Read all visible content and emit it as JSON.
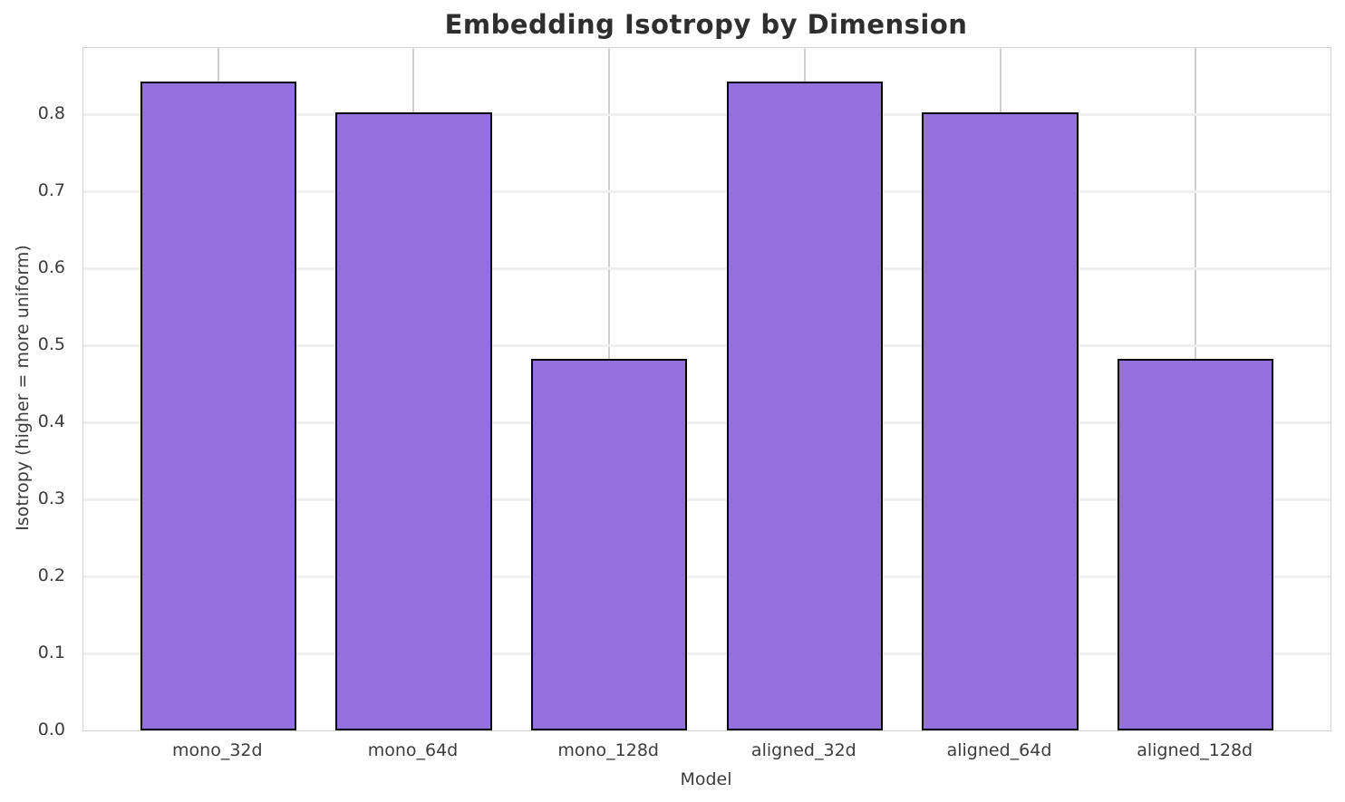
{
  "chart_data": {
    "type": "bar",
    "title": "Embedding Isotropy by Dimension",
    "xlabel": "Model",
    "ylabel": "Isotropy (higher = more uniform)",
    "categories": [
      "mono_32d",
      "mono_64d",
      "mono_128d",
      "aligned_32d",
      "aligned_64d",
      "aligned_128d"
    ],
    "values": [
      0.843,
      0.802,
      0.482,
      0.843,
      0.802,
      0.482
    ],
    "ylim": [
      0,
      0.886
    ],
    "yticks": [
      0.0,
      0.1,
      0.2,
      0.3,
      0.4,
      0.5,
      0.6,
      0.7,
      0.8
    ],
    "ytick_labels": [
      "0.0",
      "0.1",
      "0.2",
      "0.3",
      "0.4",
      "0.5",
      "0.6",
      "0.7",
      "0.8"
    ],
    "grid": true,
    "legend_position": "none",
    "bar_width_fraction": 0.8,
    "bar_color": "#9370DB",
    "bar_edge_color": "#000000",
    "grid_color_horizontal": "#efefef",
    "grid_color_vertical": "#cfcfcf",
    "spine_color": "#d2d2d2",
    "title_color": "#2e2e2e",
    "tick_label_color": "#3c3c3c",
    "background_color": "#ffffff"
  }
}
